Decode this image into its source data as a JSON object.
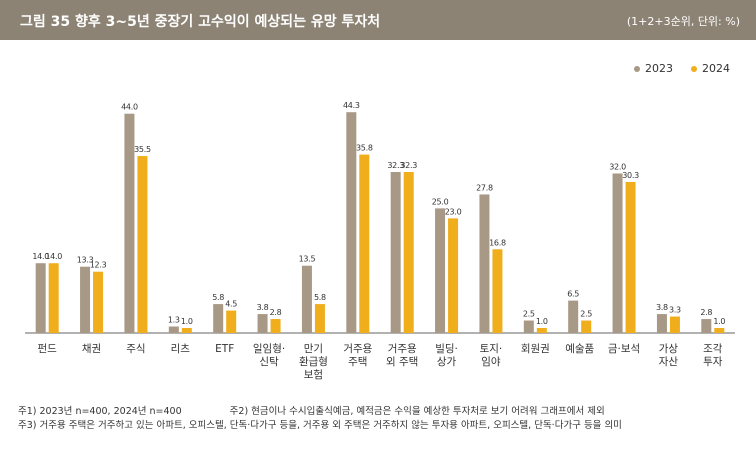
{
  "header": {
    "title": "그림 35  향후 3~5년 중장기 고수익이 예상되는 유망 투자처",
    "unit": "(1+2+3순위, 단위: %)"
  },
  "colors": {
    "series2023": "#a89886",
    "series2024": "#f0ad1c",
    "header": "#8c8374"
  },
  "chart_data": {
    "type": "bar",
    "categories": [
      [
        "펀드"
      ],
      [
        "채권"
      ],
      [
        "주식"
      ],
      [
        "리츠"
      ],
      [
        "ETF"
      ],
      [
        "일임형·",
        "신탁"
      ],
      [
        "만기",
        "환급형",
        "보험"
      ],
      [
        "거주용",
        "주택"
      ],
      [
        "거주용",
        "외 주택"
      ],
      [
        "빌딩·",
        "상가"
      ],
      [
        "토지·",
        "임야"
      ],
      [
        "회원권"
      ],
      [
        "예술품"
      ],
      [
        "금·보석"
      ],
      [
        "가상",
        "자산"
      ],
      [
        "조각",
        "투자"
      ]
    ],
    "series": [
      {
        "name": "2023",
        "values": [
          14.0,
          13.3,
          44.0,
          1.3,
          5.8,
          3.8,
          13.5,
          44.3,
          32.3,
          25.0,
          27.8,
          2.5,
          6.5,
          32.0,
          3.8,
          2.8
        ]
      },
      {
        "name": "2024",
        "values": [
          14.0,
          12.3,
          35.5,
          1.0,
          4.5,
          2.8,
          5.8,
          35.8,
          32.3,
          23.0,
          16.8,
          1.0,
          2.5,
          30.3,
          3.3,
          1.0
        ]
      }
    ],
    "ylim": [
      0,
      50
    ]
  },
  "notes": {
    "note1": "주1) 2023년 n=400, 2024년 n=400",
    "note2": "주2) 현금이나 수시입출식예금, 예적금은 수익을 예상한 투자처로 보기 어려워 그래프에서 제외",
    "note3": "주3) 거주용 주택은 거주하고 있는 아파트, 오피스텔, 단독·다가구 등을, 거주용 외 주택은 거주하지 않는 투자용 아파트, 오피스텔, 단독·다가구 등을 의미"
  }
}
